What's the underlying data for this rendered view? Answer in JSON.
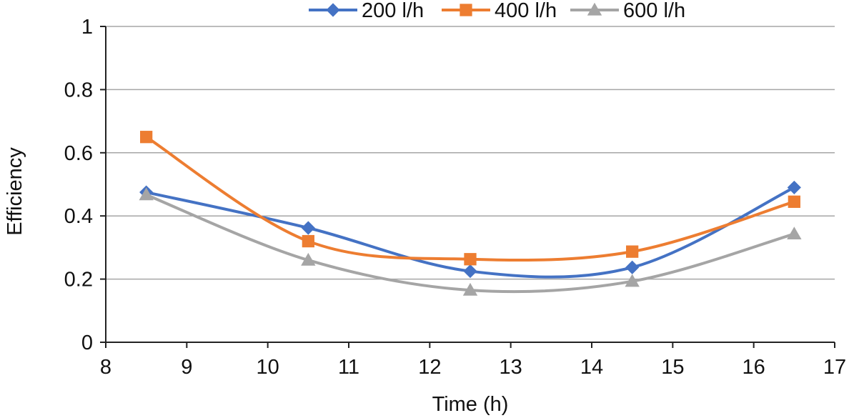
{
  "chart_data": {
    "type": "line",
    "title": "",
    "xlabel": "Time (h)",
    "ylabel": "Efficiency",
    "xlim": [
      8,
      17
    ],
    "ylim": [
      0,
      1
    ],
    "xticks": [
      8,
      9,
      10,
      11,
      12,
      13,
      14,
      15,
      16,
      17
    ],
    "yticks": [
      0,
      0.2,
      0.4,
      0.6,
      0.8,
      1
    ],
    "xtick_labels": [
      "8",
      "9",
      "10",
      "11",
      "12",
      "13",
      "14",
      "15",
      "16",
      "17"
    ],
    "ytick_labels": [
      "0",
      "0.2",
      "0.4",
      "0.6",
      "0.8",
      "1"
    ],
    "grid": "horizontal",
    "smooth": true,
    "legend_position": "top",
    "x": [
      8.5,
      10.5,
      12.5,
      14.5,
      16.5
    ],
    "series": [
      {
        "name": "200 l/h",
        "values": [
          0.475,
          0.362,
          0.225,
          0.237,
          0.49
        ],
        "color": "#4472c4",
        "marker": "diamond"
      },
      {
        "name": "400 l/h",
        "values": [
          0.65,
          0.32,
          0.263,
          0.287,
          0.445
        ],
        "color": "#ed7d31",
        "marker": "square"
      },
      {
        "name": "600 l/h",
        "values": [
          0.467,
          0.26,
          0.165,
          0.193,
          0.343
        ],
        "color": "#a5a5a5",
        "marker": "triangle"
      }
    ]
  }
}
